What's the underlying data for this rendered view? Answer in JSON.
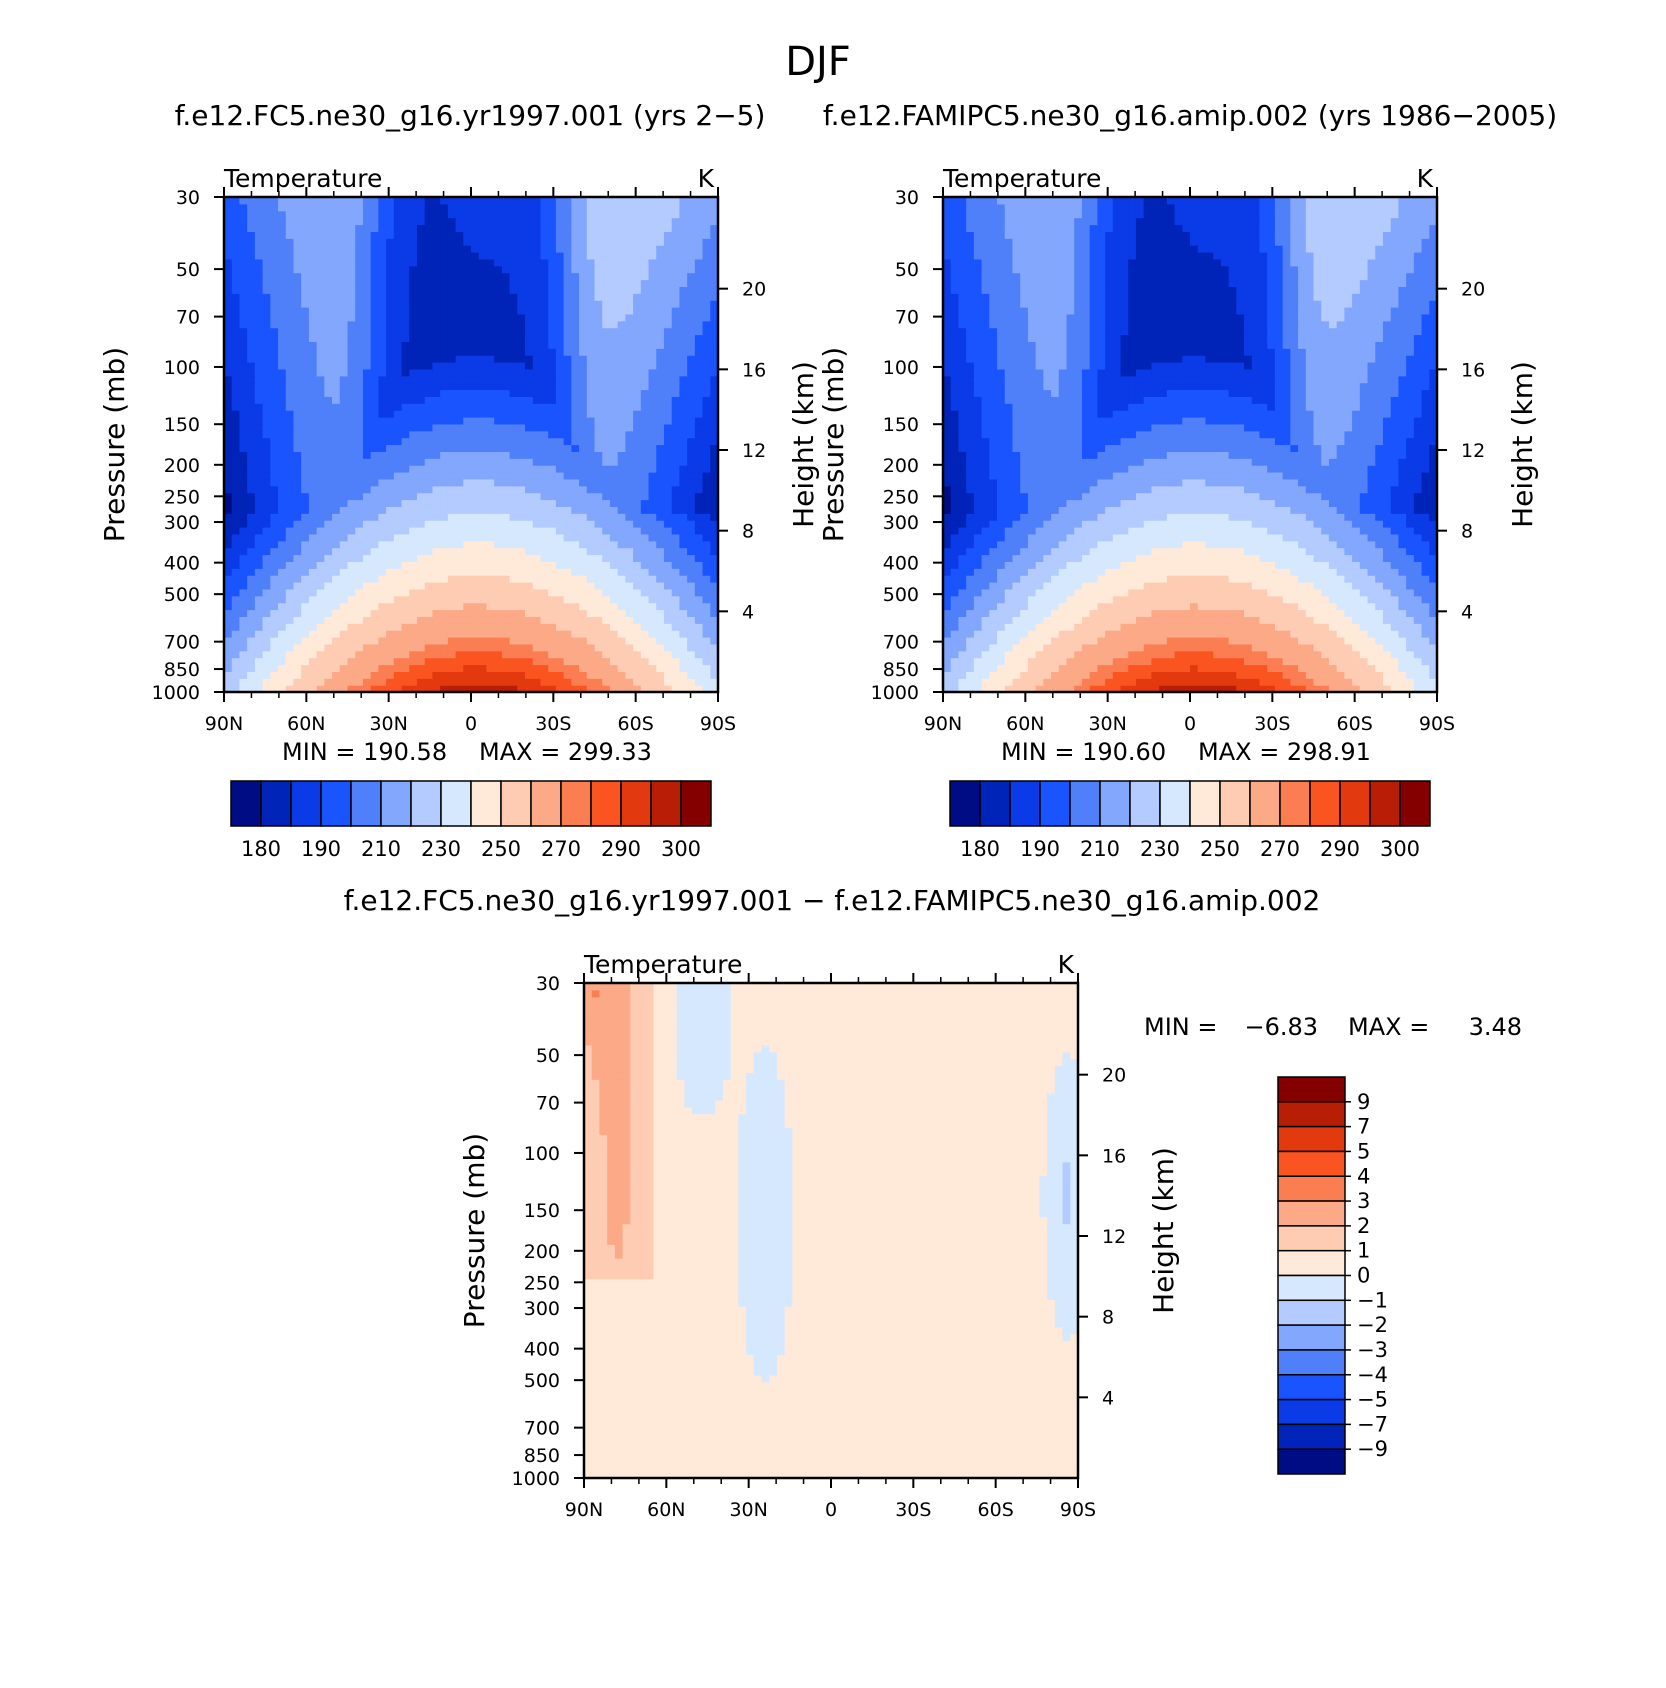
{
  "figure": {
    "title": "DJF"
  },
  "chart_data": [
    {
      "type": "heatmap",
      "case_title": "f.e12.FC5.ne30_g16.yr1997.001 (yrs 2−5)",
      "left_label": "Temperature",
      "units": "K",
      "ylabel": "Pressure (mb)",
      "ylabel_right": "Height (km)",
      "x_ticks": [
        "90N",
        "60N",
        "30N",
        "0",
        "30S",
        "60S",
        "90S"
      ],
      "y_ticks": [
        30,
        50,
        70,
        100,
        150,
        200,
        250,
        300,
        400,
        500,
        700,
        850,
        1000
      ],
      "height_ticks": [
        4,
        8,
        12,
        16,
        20
      ],
      "ylim": [
        1000,
        30
      ],
      "log_y": true,
      "min_label": "MIN = 190.58",
      "max_label": "MAX = 299.33",
      "min": 190.58,
      "max": 299.33,
      "field": "abs",
      "colorbar_orientation": "horizontal",
      "colorbar_levels": [
        180,
        190,
        210,
        230,
        250,
        270,
        290,
        300
      ]
    },
    {
      "type": "heatmap",
      "case_title": "f.e12.FAMIPC5.ne30_g16.amip.002 (yrs 1986−2005)",
      "left_label": "Temperature",
      "units": "K",
      "ylabel": "Pressure (mb)",
      "ylabel_right": "Height (km)",
      "x_ticks": [
        "90N",
        "60N",
        "30N",
        "0",
        "30S",
        "60S",
        "90S"
      ],
      "y_ticks": [
        30,
        50,
        70,
        100,
        150,
        200,
        250,
        300,
        400,
        500,
        700,
        850,
        1000
      ],
      "height_ticks": [
        4,
        8,
        12,
        16,
        20
      ],
      "ylim": [
        1000,
        30
      ],
      "log_y": true,
      "min_label": "MIN = 190.60",
      "max_label": "MAX = 298.91",
      "min": 190.6,
      "max": 298.91,
      "field": "abs",
      "colorbar_orientation": "horizontal",
      "colorbar_levels": [
        180,
        190,
        210,
        230,
        250,
        270,
        290,
        300
      ]
    },
    {
      "type": "heatmap",
      "case_title": "f.e12.FC5.ne30_g16.yr1997.001 − f.e12.FAMIPC5.ne30_g16.amip.002",
      "left_label": "Temperature",
      "units": "K",
      "ylabel": "Pressure (mb)",
      "ylabel_right": "Height (km)",
      "x_ticks": [
        "90N",
        "60N",
        "30N",
        "0",
        "30S",
        "60S",
        "90S"
      ],
      "y_ticks": [
        30,
        50,
        70,
        100,
        150,
        200,
        250,
        300,
        400,
        500,
        700,
        850,
        1000
      ],
      "height_ticks": [
        4,
        8,
        12,
        16,
        20
      ],
      "ylim": [
        1000,
        30
      ],
      "log_y": true,
      "min_label": "MIN =",
      "min_value": "−6.83",
      "max_label": "MAX =",
      "max_value": "3.48",
      "min": -6.83,
      "max": 3.48,
      "field": "diff",
      "colorbar_orientation": "vertical",
      "colorbar_levels": [
        "9",
        "7",
        "5",
        "4",
        "3",
        "2",
        "1",
        "0",
        "−1",
        "−2",
        "−3",
        "−4",
        "−5",
        "−7",
        "−9"
      ]
    }
  ],
  "colors": {
    "abs_palette": [
      "#000c84",
      "#0023b8",
      "#0a3be6",
      "#1a54ff",
      "#4f80fa",
      "#82a7fc",
      "#b3cbfe",
      "#d6e8fe",
      "#ffe9d8",
      "#fdccb3",
      "#fca987",
      "#fb7d52",
      "#fa5520",
      "#e23a0e",
      "#b81e06",
      "#840000"
    ],
    "diff_palette": [
      "#840000",
      "#b81e06",
      "#e23a0e",
      "#fa5520",
      "#fb7d52",
      "#fca987",
      "#fdccb3",
      "#ffe9d8",
      "#d6e8fe",
      "#b3cbfe",
      "#82a7fc",
      "#4f80fa",
      "#1a54ff",
      "#0a3be6",
      "#0023b8",
      "#000c84"
    ]
  }
}
